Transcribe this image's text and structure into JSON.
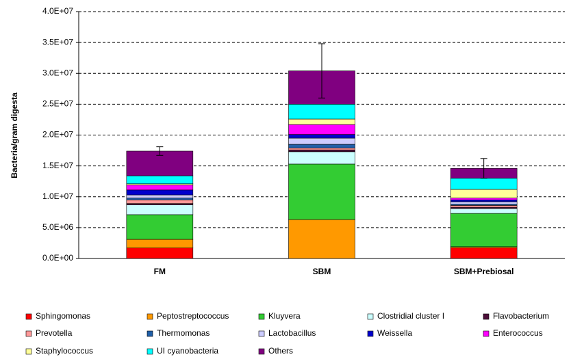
{
  "chart_data": {
    "type": "stacked_bar",
    "y_label": "Bacteria/gram digesta",
    "categories": [
      "FM",
      "SBM",
      "SBM+Prebiosal"
    ],
    "series": [
      {
        "name": "Sphingomonas",
        "color": "#ff0000",
        "values": [
          1700000,
          0,
          1700000
        ]
      },
      {
        "name": "Peptostreptococcus",
        "color": "#ff9900",
        "values": [
          1400000,
          6300000,
          200000
        ]
      },
      {
        "name": "Kluyvera",
        "color": "#33cc33",
        "values": [
          4000000,
          9000000,
          5400000
        ]
      },
      {
        "name": "Clostridial cluster I",
        "color": "#ccffff",
        "values": [
          1600000,
          2000000,
          800000
        ]
      },
      {
        "name": "Flavobacterium",
        "color": "#4d0f3a",
        "values": [
          200000,
          300000,
          200000
        ]
      },
      {
        "name": "Prevotella",
        "color": "#ff9999",
        "values": [
          600000,
          300000,
          300000
        ]
      },
      {
        "name": "Thermomonas",
        "color": "#1f5fa8",
        "values": [
          300000,
          600000,
          200000
        ]
      },
      {
        "name": "Lactobacillus",
        "color": "#ccccff",
        "values": [
          500000,
          1000000,
          400000
        ]
      },
      {
        "name": "Weissella",
        "color": "#0000cc",
        "values": [
          800000,
          600000,
          300000
        ]
      },
      {
        "name": "Enterococcus",
        "color": "#ff00ff",
        "values": [
          800000,
          1600000,
          300000
        ]
      },
      {
        "name": "Staphylococcus",
        "color": "#ffff99",
        "values": [
          200000,
          900000,
          1400000
        ]
      },
      {
        "name": "UI cyanobacteria",
        "color": "#00ffff",
        "values": [
          1300000,
          2400000,
          1800000
        ]
      },
      {
        "name": "Others",
        "color": "#800080",
        "values": [
          4000000,
          5400000,
          1600000
        ]
      }
    ],
    "errors": [
      700000,
      4400000,
      1600000
    ],
    "ylim": [
      0,
      40000000
    ],
    "yticks": [
      {
        "value": 0,
        "label": "0.0E+00"
      },
      {
        "value": 5000000,
        "label": "5.0E+06"
      },
      {
        "value": 10000000,
        "label": "1.0E+07"
      },
      {
        "value": 15000000,
        "label": "1.5E+07"
      },
      {
        "value": 20000000,
        "label": "2.0E+07"
      },
      {
        "value": 25000000,
        "label": "2.5E+07"
      },
      {
        "value": 30000000,
        "label": "3.0E+07"
      },
      {
        "value": 35000000,
        "label": "3.5E+07"
      },
      {
        "value": 40000000,
        "label": "4.0E+07"
      }
    ],
    "grid": true,
    "legend": "bottom"
  }
}
